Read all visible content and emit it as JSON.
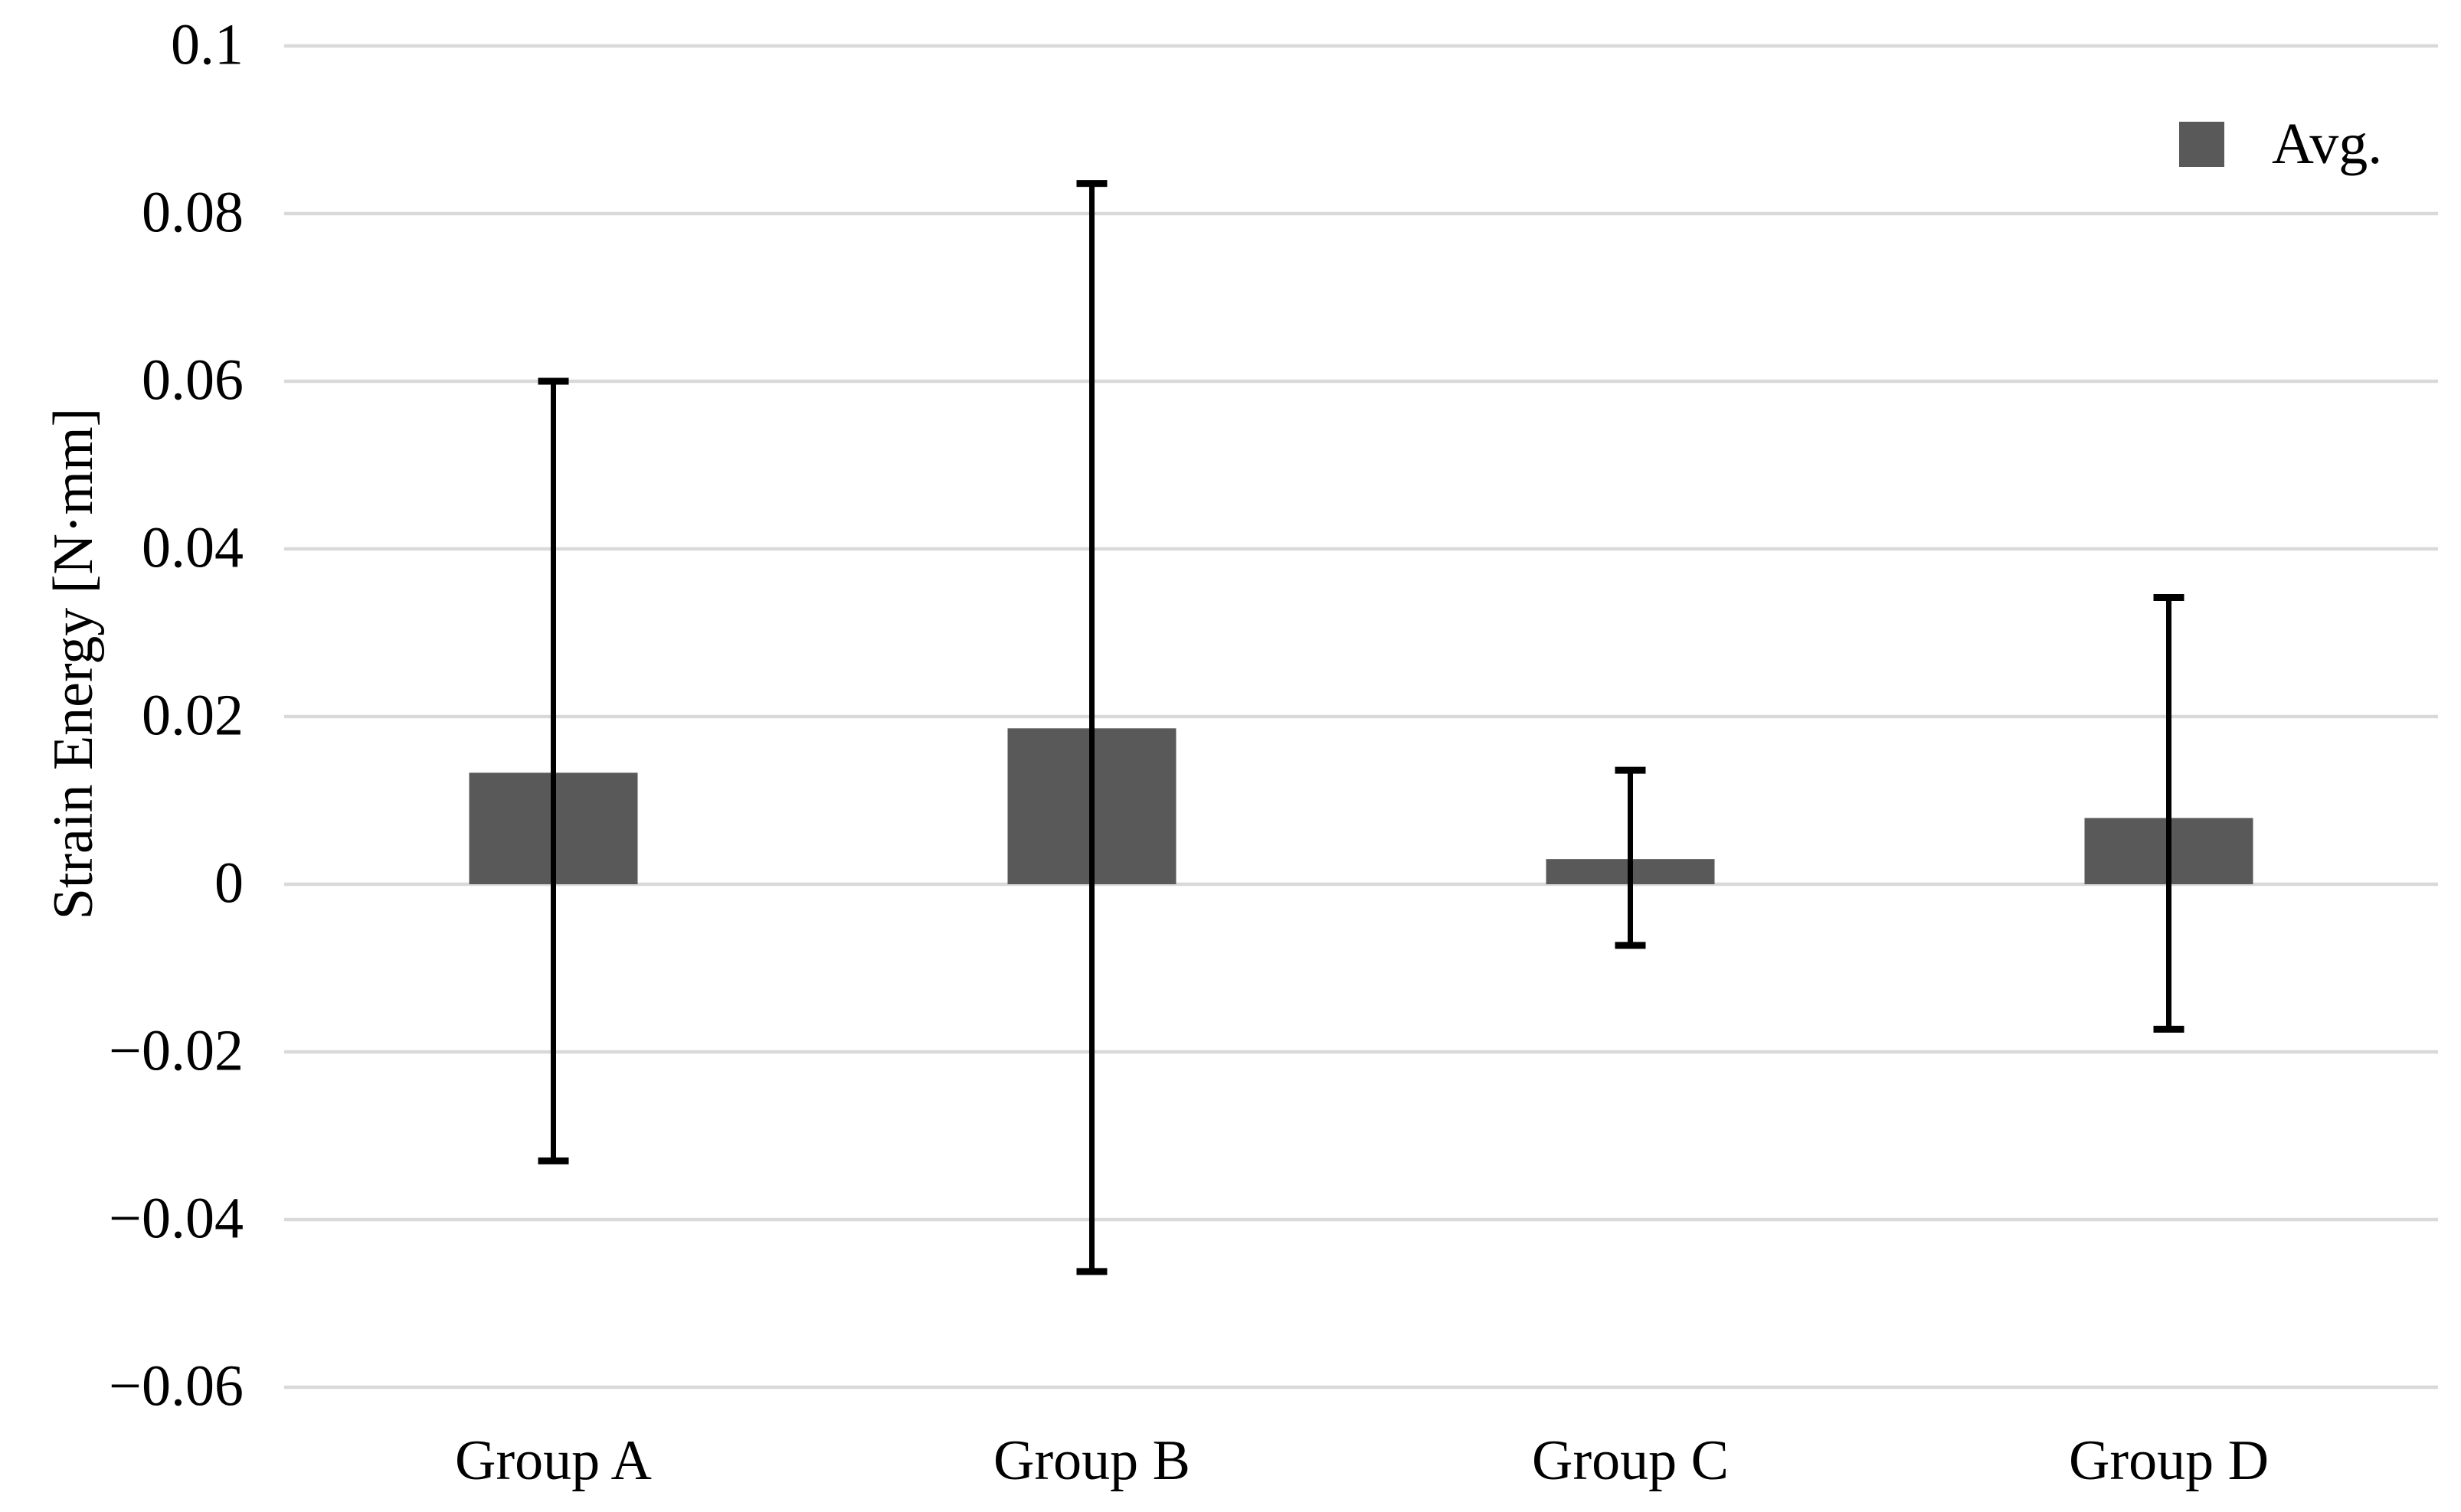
{
  "chart_data": {
    "type": "bar",
    "title": "",
    "xlabel": "",
    "ylabel": "Strain Energy [N·mm]",
    "categories": [
      "Group A",
      "Group B",
      "Group C",
      "Group D"
    ],
    "series": [
      {
        "name": "Avg.",
        "values": [
          0.0133,
          0.0186,
          0.003,
          0.0079
        ]
      }
    ],
    "error_bars": {
      "upper": [
        0.06,
        0.0836,
        0.0136,
        0.0342
      ],
      "lower": [
        -0.033,
        -0.0462,
        -0.0073,
        -0.0173
      ]
    },
    "ylim": [
      -0.06,
      0.1
    ],
    "yticks": [
      {
        "label": "0.1",
        "value": 0.1
      },
      {
        "label": "0.08",
        "value": 0.08
      },
      {
        "label": "0.06",
        "value": 0.06
      },
      {
        "label": "0.04",
        "value": 0.04
      },
      {
        "label": "0.02",
        "value": 0.02
      },
      {
        "label": "0",
        "value": 0
      },
      {
        "label": "−0.02",
        "value": -0.02
      },
      {
        "label": "−0.04",
        "value": -0.04
      },
      {
        "label": "−0.06",
        "value": -0.06
      }
    ],
    "grid": "horizontal",
    "legend_position": "top-right",
    "colors": {
      "bar": "#595959",
      "gridline": "#d9d9d9",
      "error_bar": "#000000",
      "text": "#000000",
      "background": "#ffffff"
    }
  }
}
